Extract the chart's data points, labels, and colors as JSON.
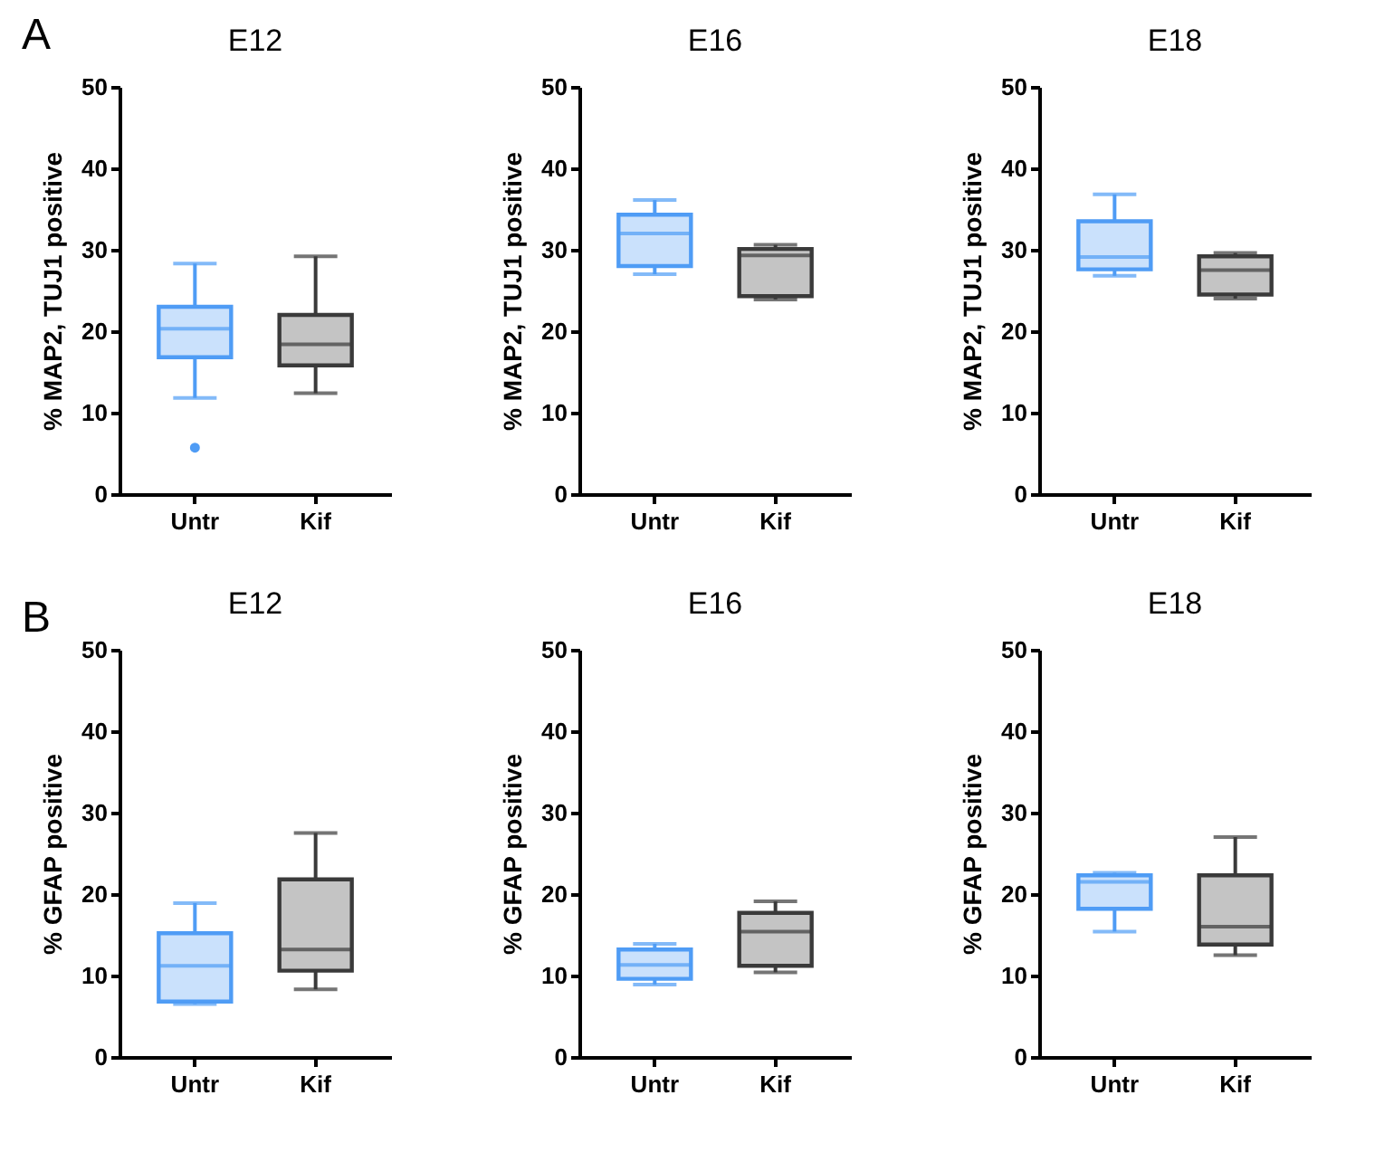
{
  "chart_data": [
    {
      "type": "box",
      "title": "E12",
      "ylabel": "% MAP2, TUJ1 positive",
      "annotations": [
        "A"
      ],
      "categories": [
        "Untr",
        "Kif"
      ],
      "colors": [
        "#4f9cf5",
        "#3a3a3a"
      ],
      "ylim": [
        0,
        50
      ],
      "yticks": [
        0,
        10,
        20,
        30,
        40,
        50
      ],
      "boxes": [
        {
          "low": 11.8,
          "q1": 16.8,
          "median": 20.3,
          "q3": 23,
          "high": 28.3,
          "outliers": [
            5.7
          ]
        },
        {
          "low": 12.4,
          "q1": 15.8,
          "median": 18.4,
          "q3": 22,
          "high": 29.2
        }
      ]
    },
    {
      "type": "box",
      "title": "E16",
      "ylabel": "% MAP2, TUJ1 positive",
      "categories": [
        "Untr",
        "Kif"
      ],
      "colors": [
        "#4f9cf5",
        "#3a3a3a"
      ],
      "ylim": [
        0,
        50
      ],
      "yticks": [
        0,
        10,
        20,
        30,
        40,
        50
      ],
      "boxes": [
        {
          "low": 27,
          "q1": 28,
          "median": 32,
          "q3": 34.3,
          "high": 36.1
        },
        {
          "low": 23.9,
          "q1": 24.3,
          "median": 29.3,
          "q3": 30.1,
          "high": 30.6
        }
      ]
    },
    {
      "type": "box",
      "title": "E18",
      "ylabel": "% MAP2, TUJ1 positive",
      "categories": [
        "Untr",
        "Kif"
      ],
      "colors": [
        "#4f9cf5",
        "#3a3a3a"
      ],
      "ylim": [
        0,
        50
      ],
      "yticks": [
        0,
        10,
        20,
        30,
        40,
        50
      ],
      "boxes": [
        {
          "low": 26.8,
          "q1": 27.6,
          "median": 29.1,
          "q3": 33.5,
          "high": 36.8
        },
        {
          "low": 24,
          "q1": 24.5,
          "median": 27.5,
          "q3": 29.2,
          "high": 29.6
        }
      ]
    },
    {
      "type": "box",
      "title": "E12",
      "ylabel": "% GFAP positive",
      "annotations": [
        "B"
      ],
      "categories": [
        "Untr",
        "Kif"
      ],
      "colors": [
        "#4f9cf5",
        "#3a3a3a"
      ],
      "ylim": [
        0,
        50
      ],
      "yticks": [
        0,
        10,
        20,
        30,
        40,
        50
      ],
      "boxes": [
        {
          "low": 6.5,
          "q1": 6.8,
          "median": 11.2,
          "q3": 15.2,
          "high": 18.9
        },
        {
          "low": 8.3,
          "q1": 10.6,
          "median": 13.2,
          "q3": 21.8,
          "high": 27.5
        }
      ]
    },
    {
      "type": "box",
      "title": "E16",
      "ylabel": "% GFAP positive",
      "categories": [
        "Untr",
        "Kif"
      ],
      "colors": [
        "#4f9cf5",
        "#3a3a3a"
      ],
      "ylim": [
        0,
        50
      ],
      "yticks": [
        0,
        10,
        20,
        30,
        40,
        50
      ],
      "boxes": [
        {
          "low": 8.9,
          "q1": 9.6,
          "median": 11.3,
          "q3": 13.2,
          "high": 13.9
        },
        {
          "low": 10.4,
          "q1": 11.2,
          "median": 15.4,
          "q3": 17.7,
          "high": 19.1
        }
      ]
    },
    {
      "type": "box",
      "title": "E18",
      "ylabel": "% GFAP positive",
      "categories": [
        "Untr",
        "Kif"
      ],
      "colors": [
        "#4f9cf5",
        "#3a3a3a"
      ],
      "ylim": [
        0,
        50
      ],
      "yticks": [
        0,
        10,
        20,
        30,
        40,
        50
      ],
      "boxes": [
        {
          "low": 15.4,
          "q1": 18.2,
          "median": 21.5,
          "q3": 22.3,
          "high": 22.6
        },
        {
          "low": 12.5,
          "q1": 13.8,
          "median": 16,
          "q3": 22.3,
          "high": 27
        }
      ]
    }
  ]
}
